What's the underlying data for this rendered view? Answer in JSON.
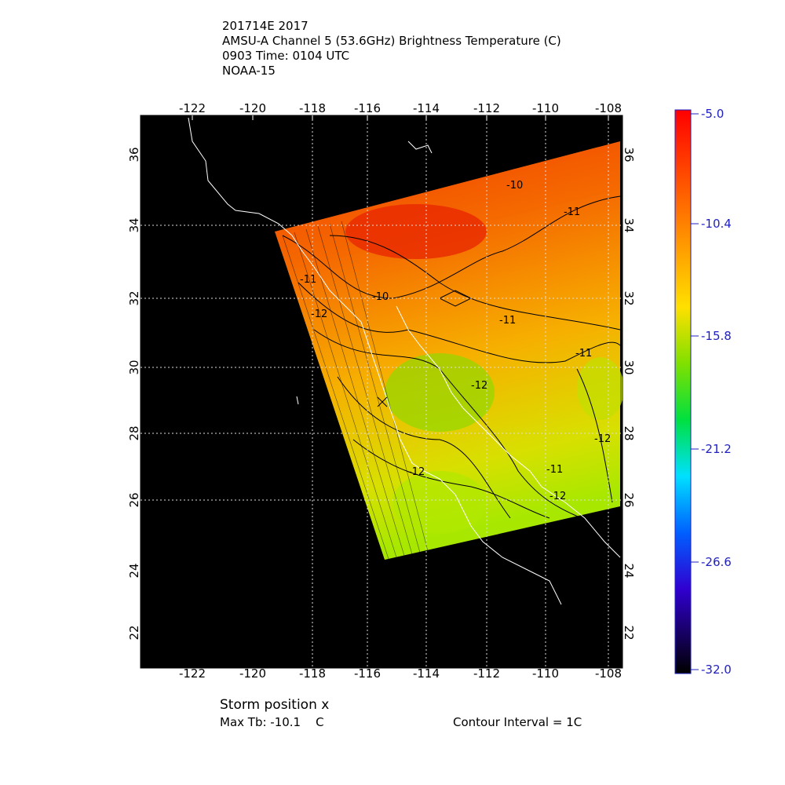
{
  "header": {
    "lines": [
      "201714E 2017",
      "AMSU-A Channel 5 (53.6GHz) Brightness Temperature (C)",
      "0903 Time: 0104 UTC",
      "NOAA-15"
    ]
  },
  "map": {
    "lon_labels": [
      "-122",
      "-120",
      "-118",
      "-116",
      "-114",
      "-112",
      "-110",
      "-108"
    ],
    "lat_labels": [
      "22",
      "24",
      "26",
      "28",
      "30",
      "32",
      "34",
      "36"
    ],
    "contour_labels": [
      "-10",
      "-11",
      "-10",
      "-11",
      "-11",
      "-12",
      "-12",
      "-12",
      "-11",
      "-12",
      "-12",
      "-11"
    ]
  },
  "colorbar": {
    "labels": [
      "-5.0",
      "-10.4",
      "-15.8",
      "-21.2",
      "-26.6",
      "-32.0"
    ]
  },
  "footer": {
    "storm_position": "Storm position x",
    "max_tb": "Max Tb: -10.1    C",
    "contour_interval": "Contour Interval = 1C"
  }
}
